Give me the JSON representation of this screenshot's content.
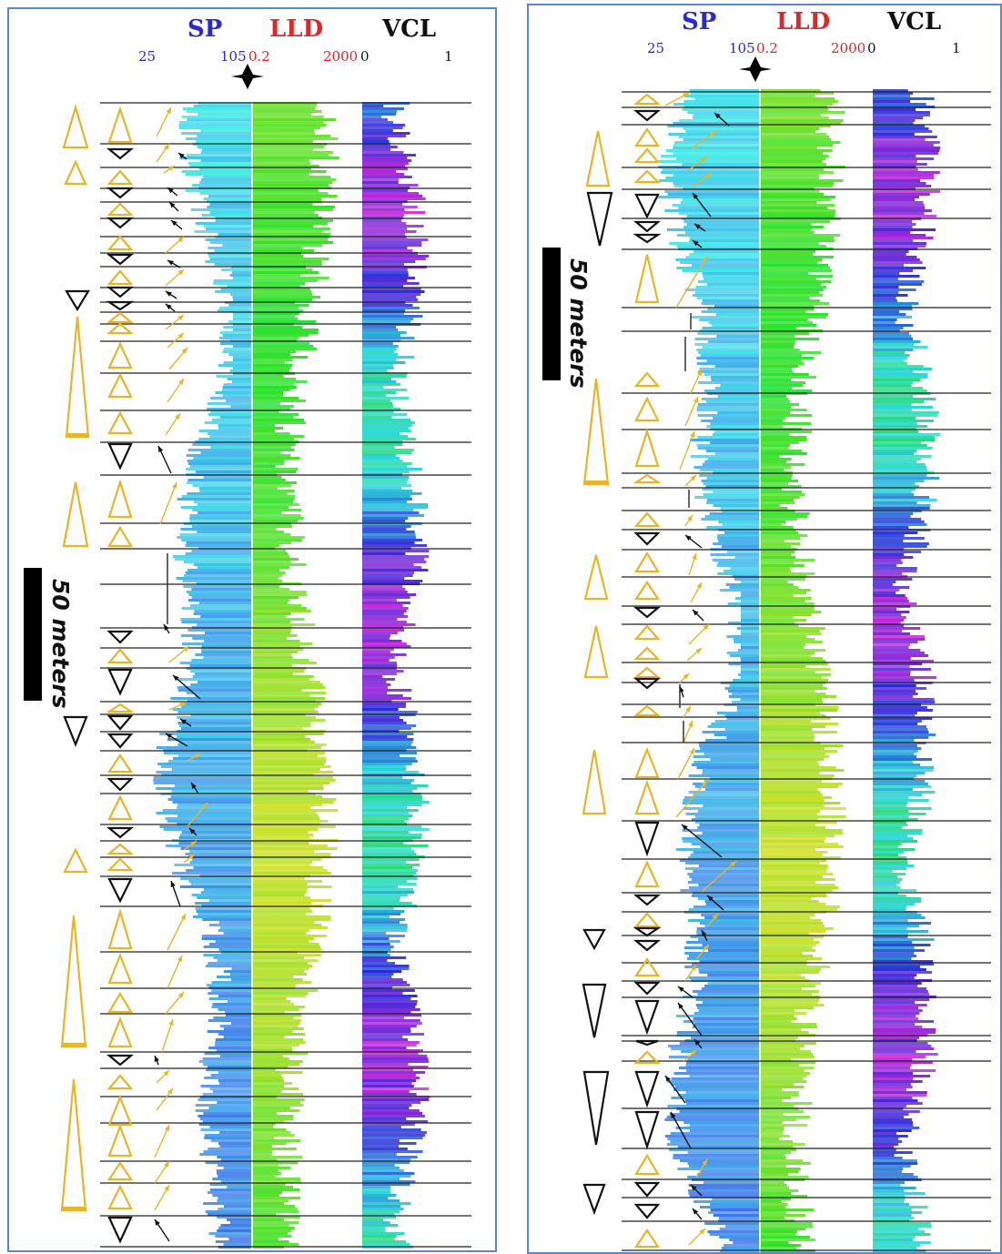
{
  "panels": [
    {
      "id": "left",
      "tracks": {
        "sp": {
          "label": "SP",
          "min": "25",
          "max": "105"
        },
        "lld": {
          "label": "LLD",
          "min": "0.2",
          "max": "2000"
        },
        "vcl": {
          "label": "VCL",
          "min": "0",
          "max": "1"
        }
      },
      "scale_bar": "50 meters"
    },
    {
      "id": "right",
      "tracks": {
        "sp": {
          "label": "SP",
          "min": "25",
          "max": "105"
        },
        "lld": {
          "label": "LLD",
          "min": "0.2",
          "max": "2000"
        },
        "vcl": {
          "label": "VCL",
          "min": "0",
          "max": "1"
        }
      },
      "scale_bar": "50 meters"
    }
  ],
  "colors": {
    "sp_blue": "#2a2ad0",
    "lld_red": "#e0262a",
    "upward_triangle": "#e8b428",
    "downward_triangle": "#111111",
    "frame": "#5b86c9"
  }
}
